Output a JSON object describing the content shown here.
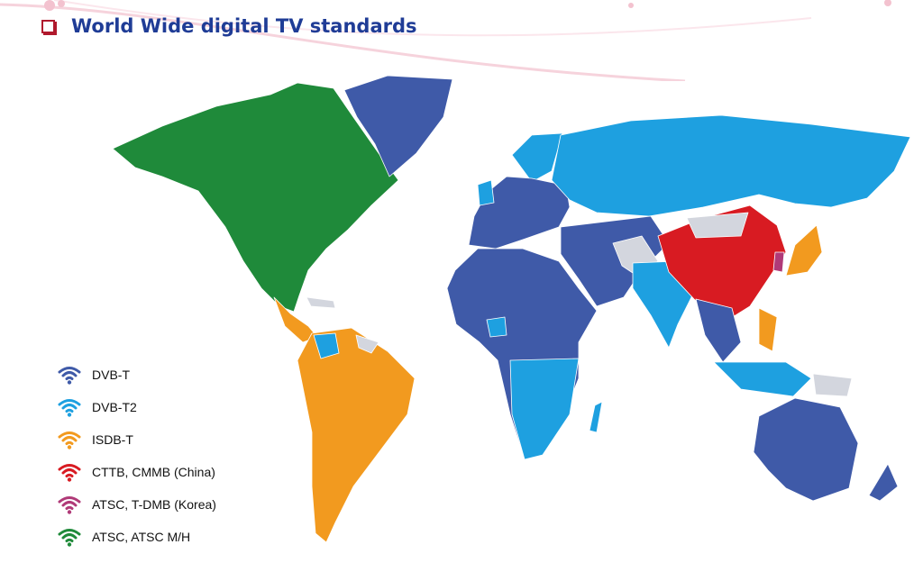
{
  "title": "World Wide digital TV standards",
  "legend": [
    {
      "label": "DVB-T",
      "color": "#3f5aa8",
      "icon": "wifi-icon"
    },
    {
      "label": "DVB-T2",
      "color": "#1ea0e0",
      "icon": "wifi-icon"
    },
    {
      "label": "ISDB-T",
      "color": "#f29a1f",
      "icon": "wifi-icon"
    },
    {
      "label": "CTTB, CMMB (China)",
      "color": "#d81b22",
      "icon": "wifi-icon"
    },
    {
      "label": "ATSC, T-DMB (Korea)",
      "color": "#b03a78",
      "icon": "wifi-icon"
    },
    {
      "label": "ATSC, ATSC M/H",
      "color": "#1f8a3a",
      "icon": "wifi-icon"
    }
  ],
  "colors": {
    "no_data": "#d3d6de",
    "title": "#1f3c96",
    "bullet": "#b0192d"
  }
}
